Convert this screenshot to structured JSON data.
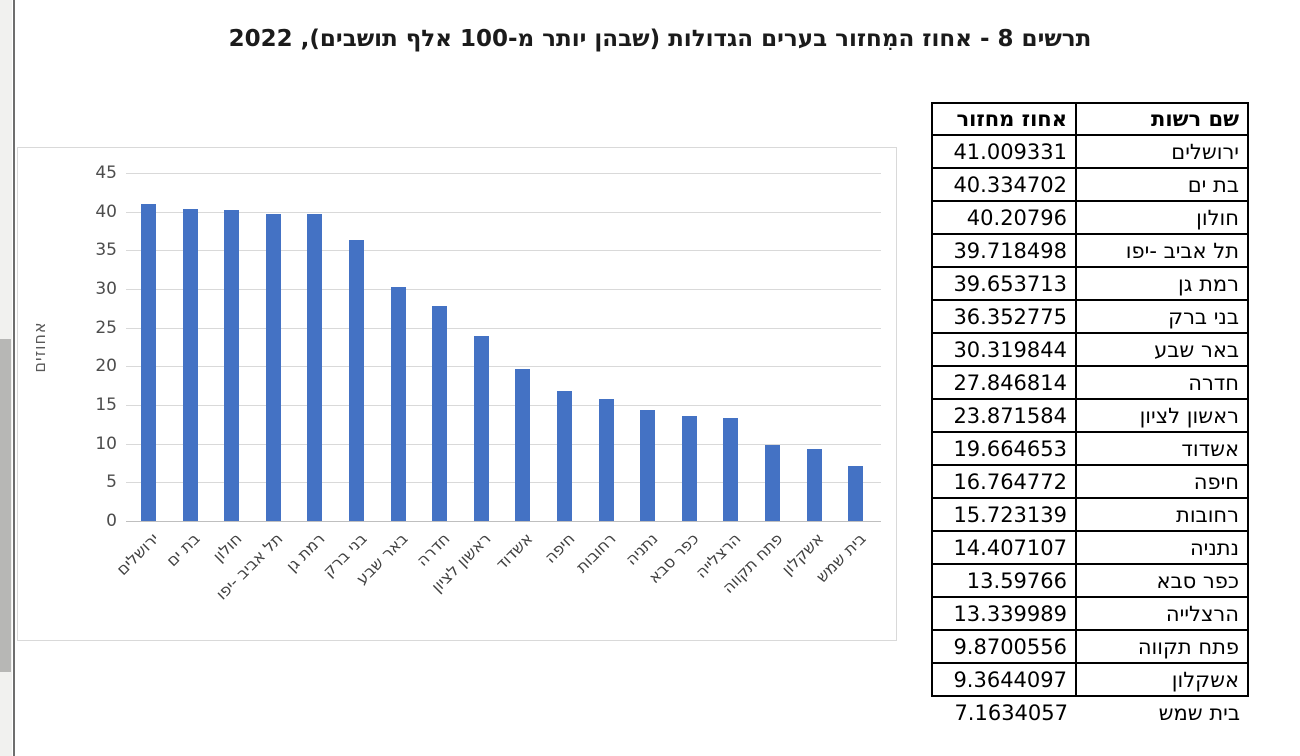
{
  "title": "תרשים 8 - אחוז המִחזור בערים הגדולות (שבהן יותר מ-100 אלף תושבים), 2022",
  "chart_data": {
    "type": "bar",
    "title": "תרשים 8 - אחוז המִחזור בערים הגדולות (שבהן יותר מ-100 אלף תושבים), 2022",
    "xlabel": "",
    "ylabel": "אחוזים",
    "ylim": [
      0,
      45
    ],
    "ytick_step": 5,
    "grid": true,
    "legend": false,
    "bar_color": "#4472C4",
    "categories": [
      "ירושלים",
      "בת ים",
      "חולון",
      "תל אביב -יפו",
      "רמת גן",
      "בני ברק",
      "באר שבע",
      "חדרה",
      "ראשון לציון",
      "אשדוד",
      "חיפה",
      "רחובות",
      "נתניה",
      "כפר סבא",
      "הרצלייה",
      "פתח תקווה",
      "אשקלון",
      "בית שמש"
    ],
    "values": [
      41.009331,
      40.334702,
      40.20796,
      39.718498,
      39.653713,
      36.352775,
      30.319844,
      27.846814,
      23.871584,
      19.664653,
      16.764772,
      15.723139,
      14.407107,
      13.59766,
      13.339989,
      9.8700556,
      9.3644097,
      7.1634057
    ]
  },
  "table": {
    "headers": {
      "name": "שם רשות",
      "value": "אחוז מחזור"
    },
    "rows": [
      {
        "name": "ירושלים",
        "value": "41.009331"
      },
      {
        "name": "בת ים",
        "value": "40.334702"
      },
      {
        "name": "חולון",
        "value": "40.20796"
      },
      {
        "name": "תל אביב -יפו",
        "value": "39.718498"
      },
      {
        "name": "רמת גן",
        "value": "39.653713"
      },
      {
        "name": "בני ברק",
        "value": "36.352775"
      },
      {
        "name": "באר שבע",
        "value": "30.319844"
      },
      {
        "name": "חדרה",
        "value": "27.846814"
      },
      {
        "name": "ראשון לציון",
        "value": "23.871584"
      },
      {
        "name": "אשדוד",
        "value": "19.664653"
      },
      {
        "name": "חיפה",
        "value": "16.764772"
      },
      {
        "name": "רחובות",
        "value": "15.723139"
      },
      {
        "name": "נתניה",
        "value": "14.407107"
      },
      {
        "name": "כפר סבא",
        "value": "13.59766"
      },
      {
        "name": "הרצלייה",
        "value": "13.339989"
      },
      {
        "name": "פתח תקווה",
        "value": "9.8700556"
      },
      {
        "name": "אשקלון",
        "value": "9.3644097"
      },
      {
        "name": "בית שמש",
        "value": "7.1634057"
      }
    ]
  }
}
